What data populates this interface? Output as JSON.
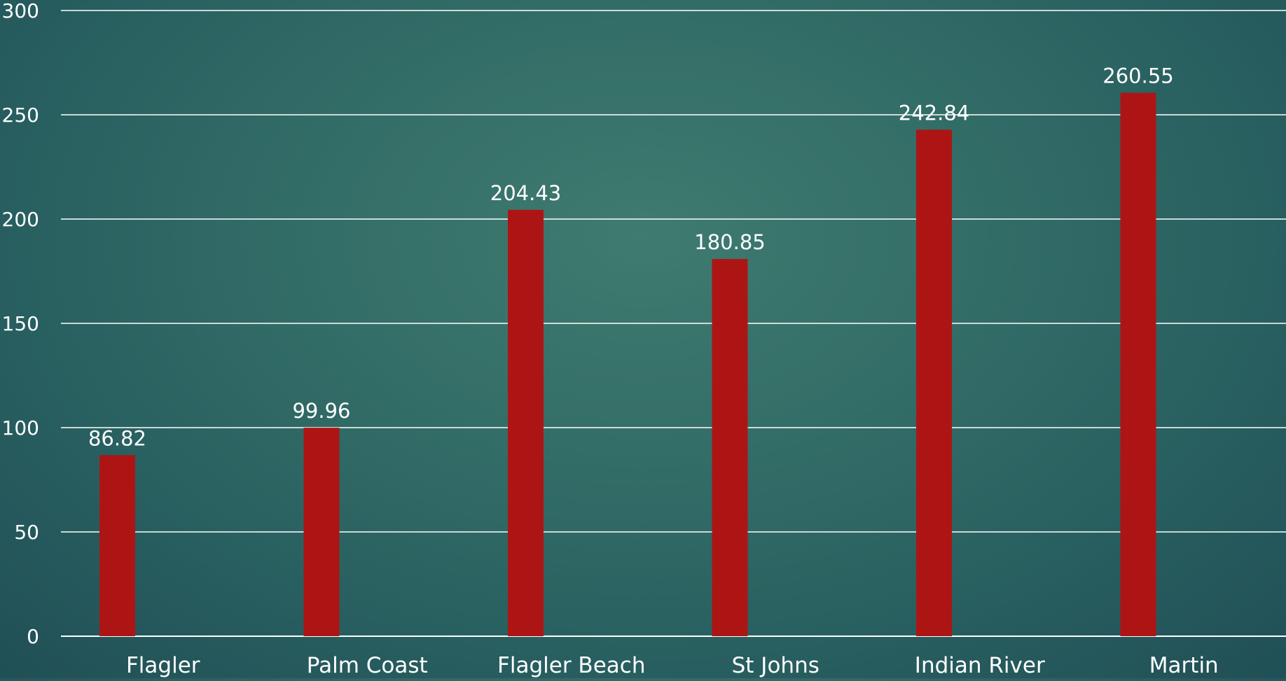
{
  "chart_data": {
    "type": "bar",
    "categories": [
      "Flagler",
      "Palm Coast",
      "Flagler Beach",
      "St Johns",
      "Indian River",
      "Martin"
    ],
    "series": [
      {
        "values": [
          86.82,
          99.96,
          204.43,
          180.85,
          242.84,
          260.55
        ]
      }
    ],
    "data_labels": [
      "86.82",
      "99.96",
      "204.43",
      "180.85",
      "242.84",
      "260.55"
    ],
    "y_ticks": [
      "0",
      "50",
      "100",
      "150",
      "200",
      "250",
      "300"
    ],
    "ylim": [
      0,
      300
    ],
    "title": "",
    "xlabel": "",
    "ylabel": "",
    "grid": true,
    "legend": "none",
    "colors": {
      "bar": "#ad1515",
      "gridline": "#ffffff",
      "text": "#ffffff"
    }
  }
}
